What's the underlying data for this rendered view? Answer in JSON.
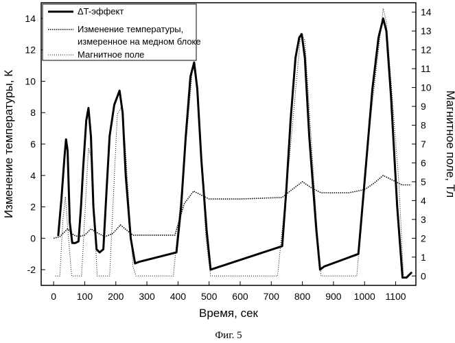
{
  "figure_caption": "Фиг. 5",
  "chart_data": {
    "type": "line",
    "title": "",
    "xlabel": "Время, сек",
    "ylabel": "Изменение температуры, К",
    "y2label": "Магнитное поле, Тл",
    "xlim": [
      -40,
      1165
    ],
    "ylim": [
      -3,
      15
    ],
    "y2lim": [
      -0.5,
      14.5
    ],
    "xticks": [
      0,
      100,
      200,
      300,
      400,
      500,
      600,
      700,
      800,
      900,
      1000,
      1100
    ],
    "yticks": [
      -2,
      0,
      2,
      4,
      6,
      8,
      10,
      12,
      14
    ],
    "y2ticks": [
      0,
      1,
      2,
      3,
      4,
      5,
      6,
      7,
      8,
      9,
      10,
      11,
      12,
      13,
      14
    ],
    "grid": false,
    "legend_position": "top-left",
    "legend": [
      "ΔT-эффект",
      "Изменение температуры,",
      "измеренное на медном блоке",
      "Магнитное поле"
    ],
    "series": [
      {
        "name": "ΔT-эффект",
        "axis": "left",
        "style": "solid-thick",
        "x": [
          15,
          25,
          35,
          40,
          45,
          52,
          60,
          70,
          80,
          88,
          95,
          105,
          112,
          120,
          128,
          138,
          148,
          160,
          170,
          180,
          195,
          212,
          222,
          232,
          248,
          262,
          275,
          395,
          410,
          425,
          440,
          452,
          462,
          475,
          492,
          505,
          520,
          735,
          748,
          762,
          778,
          790,
          798,
          808,
          822,
          845,
          857,
          870,
          980,
          993,
          1008,
          1025,
          1045,
          1060,
          1070,
          1085,
          1105,
          1122,
          1135,
          1150
        ],
        "y": [
          0.2,
          2.5,
          5.2,
          6.3,
          5.6,
          1.0,
          -0.3,
          -0.3,
          -0.2,
          2.0,
          4.5,
          7.5,
          8.3,
          6.5,
          2.0,
          -0.7,
          -0.9,
          -0.7,
          3.0,
          6.5,
          8.5,
          9.4,
          8.0,
          4.0,
          0.0,
          -1.6,
          -1.5,
          -0.9,
          2.0,
          6.5,
          10.3,
          11.2,
          9.5,
          5.0,
          0.5,
          -2.0,
          -1.9,
          -0.5,
          3.0,
          7.5,
          11.5,
          12.8,
          13.0,
          11.5,
          6.5,
          0.5,
          -2.0,
          -1.8,
          -1.0,
          2.0,
          5.5,
          9.5,
          12.8,
          14.0,
          13.2,
          9.0,
          2.0,
          -2.5,
          -2.5,
          -2.2
        ]
      },
      {
        "name": "Изменение температуры, измеренное на медном блоке",
        "axis": "left",
        "style": "dense-dotted",
        "x": [
          0,
          20,
          45,
          65,
          80,
          100,
          120,
          145,
          165,
          190,
          215,
          230,
          255,
          300,
          390,
          420,
          450,
          470,
          500,
          600,
          735,
          760,
          800,
          830,
          860,
          950,
          1000,
          1030,
          1060,
          1090,
          1120,
          1150
        ],
        "y": [
          0.0,
          0.1,
          0.6,
          0.2,
          0.1,
          0.2,
          0.6,
          0.3,
          0.1,
          0.3,
          0.85,
          0.6,
          0.2,
          0.2,
          0.2,
          2.2,
          3.0,
          2.8,
          2.5,
          2.5,
          2.6,
          3.0,
          3.6,
          3.2,
          2.9,
          2.9,
          3.1,
          3.5,
          4.0,
          3.7,
          3.4,
          3.4
        ]
      },
      {
        "name": "Магнитное поле",
        "axis": "right",
        "style": "dotted",
        "x": [
          5,
          20,
          30,
          38,
          48,
          58,
          75,
          90,
          112,
          122,
          140,
          160,
          180,
          205,
          220,
          230,
          255,
          265,
          385,
          420,
          448,
          462,
          490,
          505,
          720,
          760,
          795,
          808,
          845,
          860,
          975,
          1010,
          1060,
          1070,
          1110,
          1125
        ],
        "y": [
          0,
          0,
          3,
          4.2,
          2,
          0,
          0,
          0,
          6.8,
          6.2,
          0,
          0,
          0,
          8.6,
          9.0,
          7.0,
          0.5,
          0,
          0,
          6.0,
          11.2,
          10.0,
          2.0,
          0,
          0,
          6.5,
          12.9,
          12.5,
          3.0,
          0,
          0,
          7.0,
          14.2,
          13.5,
          5.0,
          0
        ]
      }
    ]
  }
}
